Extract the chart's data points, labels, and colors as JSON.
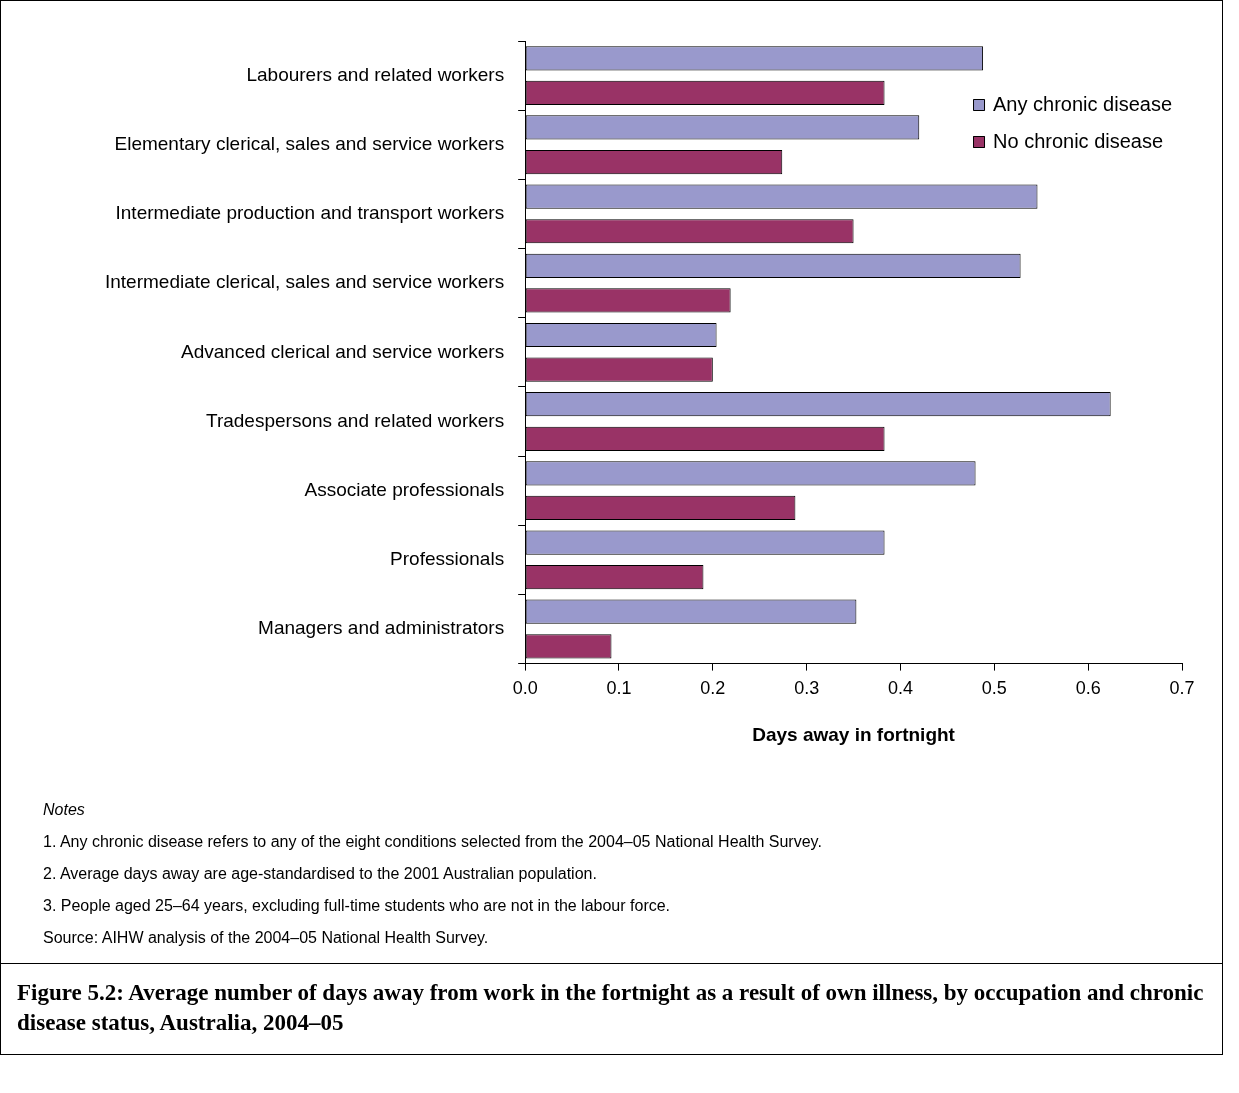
{
  "chart_data": {
    "type": "bar",
    "orientation": "horizontal",
    "title": "Figure 5.2: Average number of days away from work in the fortnight as a result of own illness, by occupation and chronic disease status, Australia, 2004–05",
    "xlabel": "Days away in fortnight",
    "categories": [
      "Labourers and related workers",
      "Elementary clerical, sales and service workers",
      "Intermediate production and transport workers",
      "Intermediate clerical, sales and service workers",
      "Advanced clerical and service workers",
      "Tradespersons and related workers",
      "Associate professionals",
      "Professionals",
      "Managers and administrators"
    ],
    "series": [
      {
        "name": "Any chronic disease",
        "color": "#9999cc",
        "values": [
          0.488,
          0.42,
          0.546,
          0.528,
          0.204,
          0.624,
          0.48,
          0.383,
          0.353
        ]
      },
      {
        "name": "No chronic disease",
        "color": "#993366",
        "values": [
          0.383,
          0.274,
          0.35,
          0.219,
          0.2,
          0.383,
          0.288,
          0.19,
          0.092
        ]
      }
    ],
    "xlim": [
      0,
      0.7
    ],
    "xticks": [
      {
        "value": 0,
        "label": "0.0"
      },
      0.1,
      0.2,
      0.3,
      0.4,
      0.5,
      0.6,
      0.7
    ],
    "grid": false,
    "legend": "top right",
    "annotations": [
      "Notes",
      "1. Any chronic disease refers to any of the eight conditions selected from the 2004–05 National Health Survey.",
      "2. Average days away are age-standardised to the 2001 Australian population.",
      "3. People aged 25–64 years, excluding full-time students who are not in the labour force.",
      "Source: AIHW analysis of the 2004–05 National Health Survey."
    ]
  }
}
